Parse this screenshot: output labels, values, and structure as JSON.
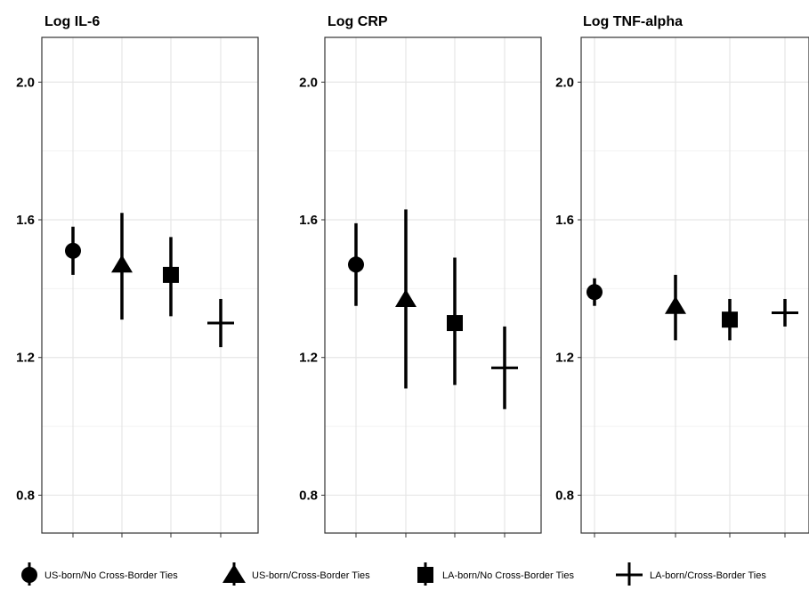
{
  "chart_data": [
    {
      "type": "scatter",
      "title": "Log IL-6",
      "categories": [
        "US-born/No Cross-Border Ties",
        "US-born/Cross-Border Ties",
        "LA-born/No Cross-Border Ties",
        "LA-born/Cross-Border Ties"
      ],
      "values": [
        1.51,
        1.47,
        1.44,
        1.3
      ],
      "lower": [
        1.44,
        1.31,
        1.32,
        1.23
      ],
      "upper": [
        1.58,
        1.62,
        1.55,
        1.37
      ],
      "ylim": [
        0.69,
        2.13
      ],
      "yticks": [
        "0.8",
        "1.2",
        "1.6",
        "2.0"
      ],
      "grid": true
    },
    {
      "type": "scatter",
      "title": "Log CRP",
      "categories": [
        "US-born/No Cross-Border Ties",
        "US-born/Cross-Border Ties",
        "LA-born/No Cross-Border Ties",
        "LA-born/Cross-Border Ties"
      ],
      "values": [
        1.47,
        1.37,
        1.3,
        1.17
      ],
      "lower": [
        1.35,
        1.11,
        1.12,
        1.05
      ],
      "upper": [
        1.59,
        1.63,
        1.49,
        1.29
      ],
      "ylim": [
        0.69,
        2.13
      ],
      "yticks": [
        "0.8",
        "1.2",
        "1.6",
        "2.0"
      ],
      "grid": true
    },
    {
      "type": "scatter",
      "title": "Log TNF-alpha",
      "categories": [
        "US-born/No Cross-Border Ties",
        "US-born/Cross-Border Ties",
        "LA-born/No Cross-Border Ties",
        "LA-born/Cross-Border Ties"
      ],
      "values": [
        1.39,
        1.35,
        1.31,
        1.33
      ],
      "lower": [
        1.35,
        1.25,
        1.25,
        1.29
      ],
      "upper": [
        1.43,
        1.44,
        1.37,
        1.37
      ],
      "ylim": [
        0.69,
        2.13
      ],
      "yticks": [
        "0.8",
        "1.2",
        "1.6",
        "2.0"
      ],
      "grid": true
    }
  ],
  "legend": {
    "position": "bottom",
    "items": [
      {
        "label": "US-born/No Cross-Border Ties",
        "shape": "circle"
      },
      {
        "label": "US-born/Cross-Border Ties",
        "shape": "triangle"
      },
      {
        "label": "LA-born/No Cross-Border Ties",
        "shape": "square"
      },
      {
        "label": "LA-born/Cross-Border Ties",
        "shape": "cross"
      }
    ]
  },
  "colors": {
    "marker": "#000000",
    "panel_border": "#333333",
    "grid_major": "#e6e6e6",
    "grid_minor": "#f2f2f2",
    "text": "#000000"
  }
}
